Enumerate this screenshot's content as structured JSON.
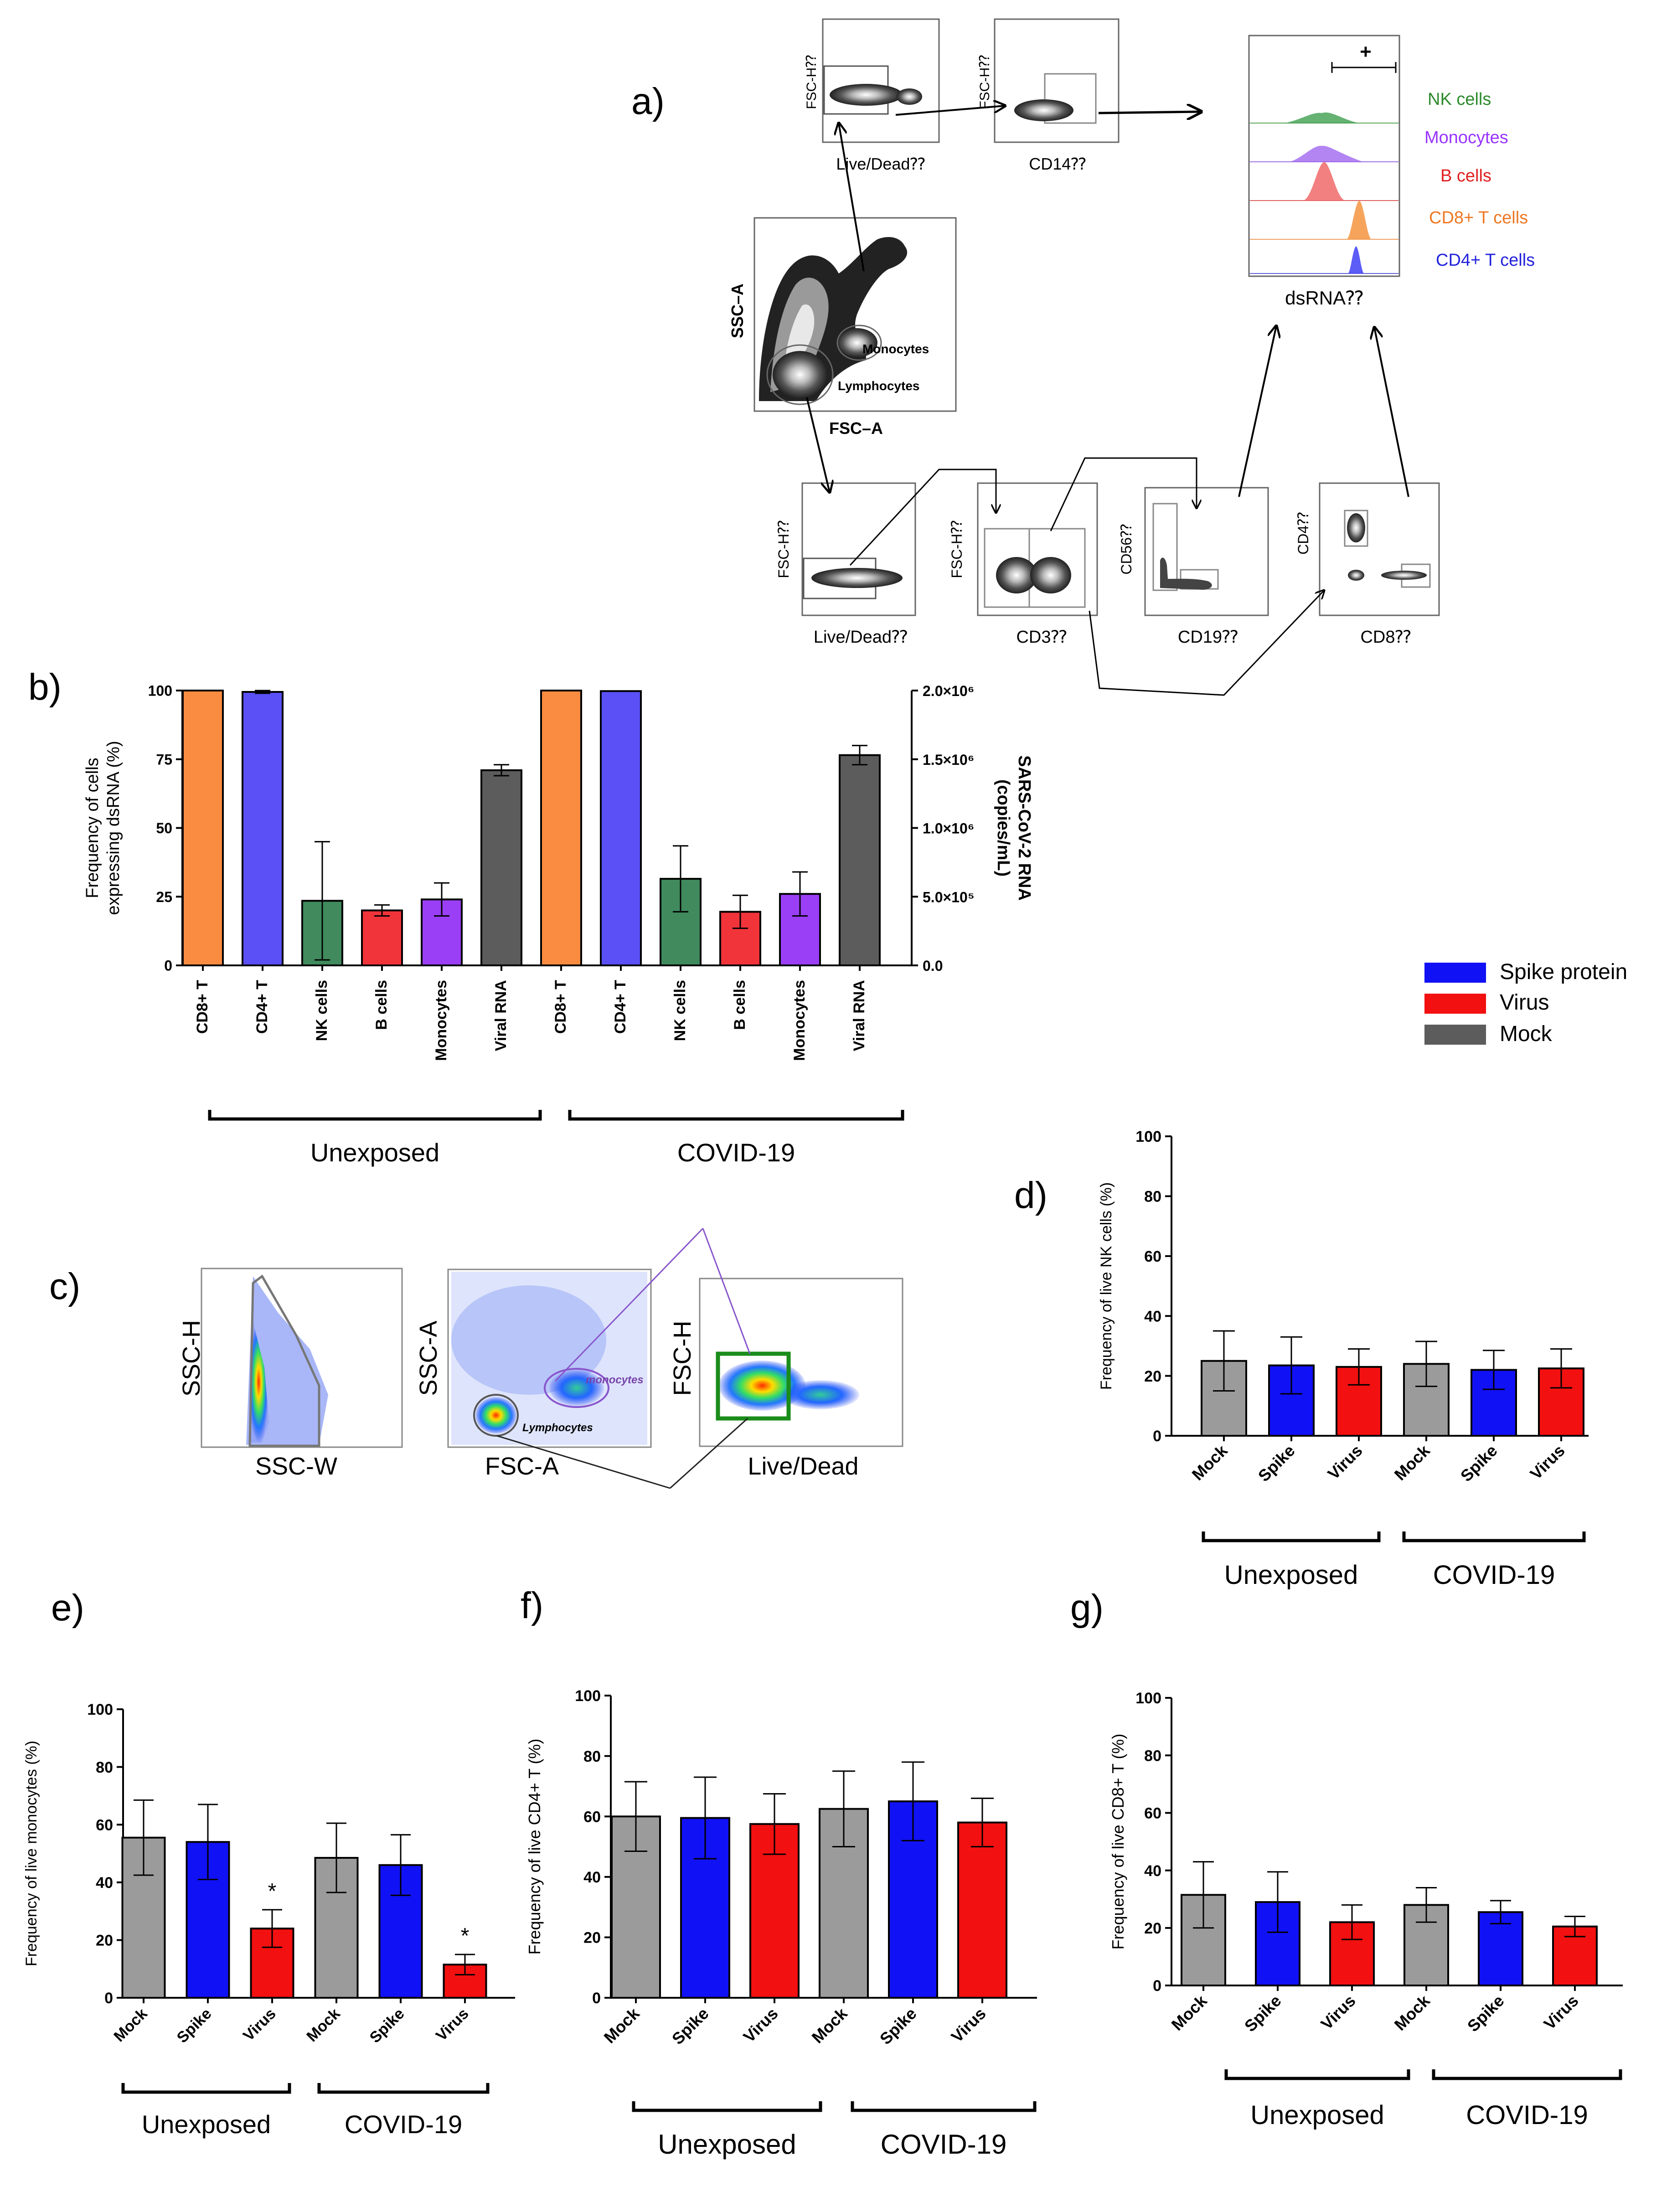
{
  "colors": {
    "orange": "#f98c40",
    "blue_cd4": "#5a50f6",
    "green": "#408a5e",
    "red": "#f0343a",
    "purple": "#9a3ff5",
    "gray": "#5c5c5c",
    "mock": "#9b9b9b",
    "spike": "#1111f5",
    "virus": "#f21010",
    "nk_text": "#2b8a2b",
    "mono_text": "#9933ff",
    "b_text": "#e02020",
    "cd8_text": "#ee7722",
    "cd4_text": "#2222dd",
    "gate_green": "#1a8c1a",
    "gate_purple": "#8855cc"
  },
  "panel_a": {
    "letter": "a)",
    "top_left": {
      "ylabel": "FSC-H⁇",
      "xlabel": "Live/Dead⁇"
    },
    "top_mid": {
      "ylabel": "FSC-H⁇",
      "xlabel": "CD14⁇"
    },
    "scatter": {
      "ylabel": "SSC–A",
      "xlabel": "FSC–A",
      "gate_mono": "Monocytes",
      "gate_lymph": "Lymphocytes"
    },
    "histogram": {
      "xlabel": "dsRNA⁇",
      "gate": "+",
      "labels": [
        "NK cells",
        "Monocytes",
        "B cells",
        "CD8+ T cells",
        "CD4+ T cells"
      ]
    },
    "bottom1": {
      "ylabel": "FSC-H⁇",
      "xlabel": "Live/Dead⁇"
    },
    "bottom2": {
      "ylabel": "FSC-H⁇",
      "xlabel": "CD3⁇"
    },
    "bottom3": {
      "ylabel": "CD56⁇",
      "xlabel": "CD19⁇"
    },
    "bottom4": {
      "ylabel": "CD4⁇",
      "xlabel": "CD8⁇"
    }
  },
  "panel_c": {
    "letter": "c)",
    "plot1": {
      "ylabel": "SSC-H",
      "xlabel": "SSC-W"
    },
    "plot2": {
      "ylabel": "SSC-A",
      "xlabel": "FSC-A",
      "gate_mono": "monocytes",
      "gate_lymph": "Lymphocytes"
    },
    "plot3": {
      "ylabel": "FSC-H",
      "xlabel": "Live/Dead"
    }
  },
  "legend": {
    "items": [
      "Spike protein",
      "Virus",
      "Mock"
    ]
  },
  "chart_data": [
    {
      "id": "b",
      "letter": "b)",
      "type": "bar",
      "title": "",
      "ylabel": "Frequency of cells expressing dsRNA (%)",
      "ylabel_lines": [
        "Frequency of cells",
        "expressing dsRNA (%)"
      ],
      "y2label": "SARS-CoV-2 RNA (copies/mL)",
      "y2label_lines": [
        "SARS-CoV-2 RNA",
        "(copies/mL)"
      ],
      "ylim": [
        0,
        100
      ],
      "yticks": [
        "0",
        "25",
        "50",
        "75",
        "100"
      ],
      "y2lim": [
        0,
        2000000
      ],
      "y2ticks": [
        "0.0",
        "5.0×10⁵",
        "1.0×10⁶",
        "1.5×10⁶",
        "2.0×10⁶"
      ],
      "categories": [
        "CD8+ T",
        "CD4+ T",
        "NK cells",
        "B cells",
        "Monocytes",
        "Viral RNA",
        "CD8+ T",
        "CD4+ T",
        "NK cells",
        "B cells",
        "Monocytes",
        "Viral RNA"
      ],
      "values": [
        100,
        99.5,
        23.5,
        20,
        24,
        71,
        100,
        99.8,
        31.5,
        19.5,
        26,
        76.5
      ],
      "errors": [
        0,
        0.5,
        21.5,
        2,
        6,
        2,
        0,
        0,
        12,
        6,
        8,
        3.5
      ],
      "colors": [
        "#f98c40",
        "#5a50f6",
        "#408a5e",
        "#f0343a",
        "#9a3ff5",
        "#5c5c5c",
        "#f98c40",
        "#5a50f6",
        "#408a5e",
        "#f0343a",
        "#9a3ff5",
        "#5c5c5c"
      ],
      "groups": [
        "Unexposed",
        "COVID-19"
      ]
    },
    {
      "id": "d",
      "letter": "d)",
      "type": "bar",
      "title": "",
      "ylabel": "Frequency of live NK cells (%)",
      "ylim": [
        0,
        100
      ],
      "yticks": [
        "0",
        "20",
        "40",
        "60",
        "80",
        "100"
      ],
      "categories": [
        "Mock",
        "Spike",
        "Virus",
        "Mock",
        "Spike",
        "Virus"
      ],
      "values": [
        25,
        23.5,
        23,
        24,
        22,
        22.5
      ],
      "errors": [
        10,
        9.5,
        6,
        7.5,
        6.5,
        6.5
      ],
      "colors": [
        "#9b9b9b",
        "#1111f5",
        "#f21010",
        "#9b9b9b",
        "#1111f5",
        "#f21010"
      ],
      "annotations": [
        "",
        "",
        "",
        "",
        "",
        ""
      ],
      "groups": [
        "Unexposed",
        "COVID-19"
      ]
    },
    {
      "id": "e",
      "letter": "e)",
      "type": "bar",
      "title": "",
      "ylabel": "Frequency of live monocytes (%)",
      "ylim": [
        0,
        100
      ],
      "yticks": [
        "0",
        "20",
        "40",
        "60",
        "80",
        "100"
      ],
      "categories": [
        "Mock",
        "Spike",
        "Virus",
        "Mock",
        "Spike",
        "Virus"
      ],
      "values": [
        55.5,
        54,
        24,
        48.5,
        46,
        11.5
      ],
      "errors": [
        13,
        13,
        6.5,
        12,
        10.5,
        3.5
      ],
      "colors": [
        "#9b9b9b",
        "#1111f5",
        "#f21010",
        "#9b9b9b",
        "#1111f5",
        "#f21010"
      ],
      "annotations": [
        "",
        "",
        "*",
        "",
        "",
        "*"
      ],
      "groups": [
        "Unexposed",
        "COVID-19"
      ]
    },
    {
      "id": "f",
      "letter": "f)",
      "type": "bar",
      "title": "",
      "ylabel": "Frequency of live CD4+ T  (%)",
      "ylim": [
        0,
        100
      ],
      "yticks": [
        "0",
        "20",
        "40",
        "60",
        "80",
        "100"
      ],
      "categories": [
        "Mock",
        "Spike",
        "Virus",
        "Mock",
        "Spike",
        "Virus"
      ],
      "values": [
        60,
        59.5,
        57.5,
        62.5,
        65,
        58
      ],
      "errors": [
        11.5,
        13.5,
        10,
        12.5,
        13,
        8
      ],
      "colors": [
        "#9b9b9b",
        "#1111f5",
        "#f21010",
        "#9b9b9b",
        "#1111f5",
        "#f21010"
      ],
      "annotations": [
        "",
        "",
        "",
        "",
        "",
        ""
      ],
      "groups": [
        "Unexposed",
        "COVID-19"
      ]
    },
    {
      "id": "g",
      "letter": "g)",
      "type": "bar",
      "title": "",
      "ylabel": "Frequency of live CD8+ T  (%)",
      "ylim": [
        0,
        100
      ],
      "yticks": [
        "0",
        "20",
        "40",
        "60",
        "80",
        "100"
      ],
      "categories": [
        "Mock",
        "Spike",
        "Virus",
        "Mock",
        "Spike",
        "Virus"
      ],
      "values": [
        31.5,
        29,
        22,
        28,
        25.5,
        20.5
      ],
      "errors": [
        11.5,
        10.5,
        6,
        6,
        4,
        3.5
      ],
      "colors": [
        "#9b9b9b",
        "#1111f5",
        "#f21010",
        "#9b9b9b",
        "#1111f5",
        "#f21010"
      ],
      "annotations": [
        "",
        "",
        "",
        "",
        "",
        ""
      ],
      "groups": [
        "Unexposed",
        "COVID-19"
      ]
    }
  ]
}
